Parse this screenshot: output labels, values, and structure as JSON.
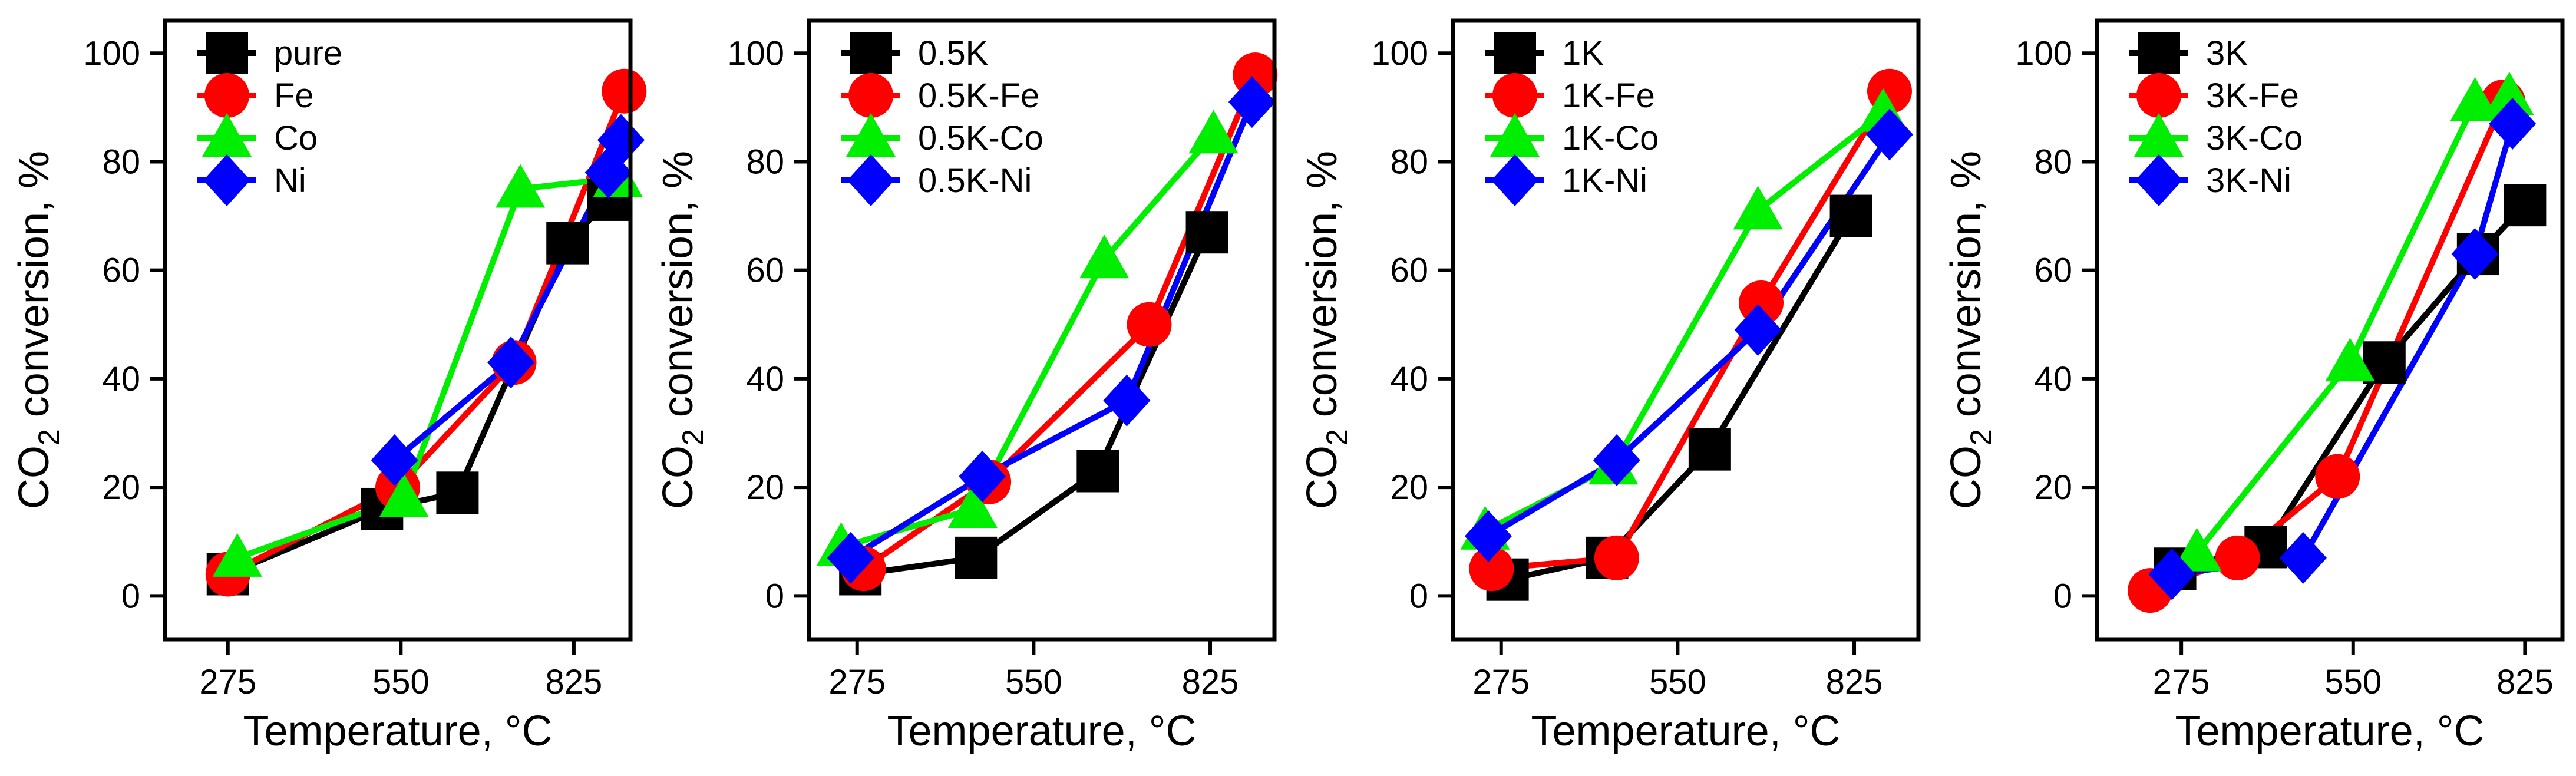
{
  "chart_data": [
    {
      "type": "line",
      "title": "",
      "xlabel": "Temperature, °C",
      "ylabel_prefix": "CO",
      "ylabel_sub": "2",
      "ylabel_suffix": " conversion, %",
      "xlim": [
        175,
        915
      ],
      "ylim": [
        -8,
        106
      ],
      "xticks": [
        275,
        550,
        825
      ],
      "yticks": [
        0,
        20,
        40,
        60,
        80,
        100
      ],
      "grid": false,
      "legend": "top-left",
      "series": [
        {
          "name": "pure",
          "color": "#000000",
          "marker": "square",
          "x": [
            275,
            520,
            640,
            815,
            880
          ],
          "y": [
            4,
            16,
            19,
            65,
            73
          ]
        },
        {
          "name": "Fe",
          "color": "#ff0000",
          "marker": "circle",
          "x": [
            275,
            545,
            730,
            905
          ],
          "y": [
            4,
            20,
            43,
            93
          ]
        },
        {
          "name": "Co",
          "color": "#00ee00",
          "marker": "triangle",
          "x": [
            290,
            555,
            740,
            895
          ],
          "y": [
            7,
            18,
            75,
            77
          ]
        },
        {
          "name": "Ni",
          "color": "#0000ff",
          "marker": "diamond",
          "x": [
            540,
            725,
            880,
            900
          ],
          "y": [
            25,
            43,
            78,
            84
          ]
        }
      ]
    },
    {
      "type": "line",
      "title": "",
      "xlabel": "Temperature, °C",
      "ylabel_prefix": "CO",
      "ylabel_sub": "2",
      "ylabel_suffix": " conversion, %",
      "xlim": [
        200,
        925
      ],
      "ylim": [
        -8,
        106
      ],
      "xticks": [
        275,
        550,
        825
      ],
      "yticks": [
        0,
        20,
        40,
        60,
        80,
        100
      ],
      "grid": false,
      "legend": "top-left",
      "series": [
        {
          "name": "0.5K",
          "color": "#000000",
          "marker": "square",
          "x": [
            280,
            460,
            650,
            820
          ],
          "y": [
            4,
            7,
            23,
            67
          ]
        },
        {
          "name": "0.5K-Fe",
          "color": "#ff0000",
          "marker": "circle",
          "x": [
            285,
            480,
            730,
            895
          ],
          "y": [
            5,
            21,
            50,
            96
          ]
        },
        {
          "name": "0.5K-Co",
          "color": "#00ee00",
          "marker": "triangle",
          "x": [
            250,
            455,
            660,
            830
          ],
          "y": [
            9,
            16,
            62,
            85
          ]
        },
        {
          "name": "0.5K-Ni",
          "color": "#0000ff",
          "marker": "diamond",
          "x": [
            265,
            470,
            695,
            890
          ],
          "y": [
            7,
            22,
            36,
            91
          ]
        }
      ]
    },
    {
      "type": "line",
      "title": "",
      "xlabel": "Temperature, °C",
      "ylabel_prefix": "CO",
      "ylabel_sub": "2",
      "ylabel_suffix": " conversion, %",
      "xlim": [
        200,
        925
      ],
      "ylim": [
        -8,
        106
      ],
      "xticks": [
        275,
        550,
        825
      ],
      "yticks": [
        0,
        20,
        40,
        60,
        80,
        100
      ],
      "grid": false,
      "legend": "top-left",
      "series": [
        {
          "name": "1K",
          "color": "#000000",
          "marker": "square",
          "x": [
            285,
            440,
            600,
            820
          ],
          "y": [
            3,
            7,
            27,
            70
          ]
        },
        {
          "name": "1K-Fe",
          "color": "#ff0000",
          "marker": "circle",
          "x": [
            260,
            455,
            680,
            880
          ],
          "y": [
            5,
            7,
            54,
            93
          ]
        },
        {
          "name": "1K-Co",
          "color": "#00ee00",
          "marker": "triangle",
          "x": [
            250,
            450,
            675,
            870
          ],
          "y": [
            12,
            24,
            71,
            89
          ]
        },
        {
          "name": "1K-Ni",
          "color": "#0000ff",
          "marker": "diamond",
          "x": [
            255,
            455,
            675,
            880
          ],
          "y": [
            11,
            25,
            49,
            85
          ]
        }
      ]
    },
    {
      "type": "line",
      "title": "",
      "xlabel": "Temperature, °C",
      "ylabel_prefix": "CO",
      "ylabel_sub": "2",
      "ylabel_suffix": " conversion, %",
      "xlim": [
        140,
        885
      ],
      "ylim": [
        -8,
        106
      ],
      "xticks": [
        275,
        550,
        825
      ],
      "yticks": [
        0,
        20,
        40,
        60,
        80,
        100
      ],
      "grid": false,
      "legend": "top-left",
      "series": [
        {
          "name": "3K",
          "color": "#000000",
          "marker": "square",
          "x": [
            265,
            410,
            600,
            750,
            825
          ],
          "y": [
            5,
            9,
            43,
            63,
            72
          ]
        },
        {
          "name": "3K-Fe",
          "color": "#ff0000",
          "marker": "circle",
          "x": [
            225,
            365,
            525,
            790
          ],
          "y": [
            1,
            7,
            22,
            91
          ]
        },
        {
          "name": "3K-Co",
          "color": "#00ee00",
          "marker": "triangle",
          "x": [
            300,
            545,
            745,
            800
          ],
          "y": [
            8,
            43,
            91,
            92
          ]
        },
        {
          "name": "3K-Ni",
          "color": "#0000ff",
          "marker": "diamond",
          "x": [
            260,
            470,
            745,
            805
          ],
          "y": [
            4,
            7,
            63,
            87
          ]
        }
      ]
    }
  ]
}
